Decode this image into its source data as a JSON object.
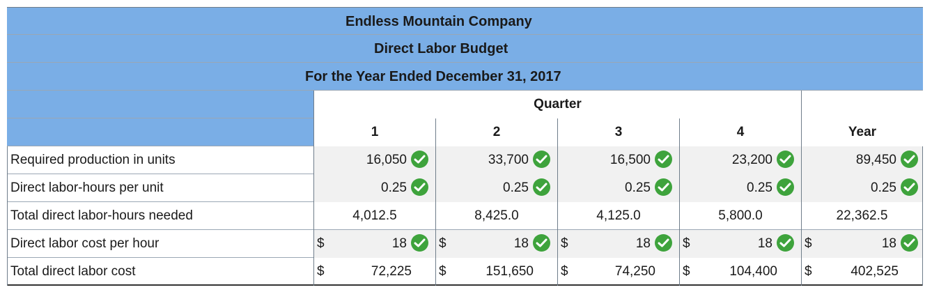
{
  "header": {
    "company": "Endless Mountain Company",
    "report": "Direct Labor Budget",
    "period": "For the Year Ended December 31, 2017"
  },
  "columns": {
    "quarter_label": "Quarter",
    "q1": "1",
    "q2": "2",
    "q3": "3",
    "q4": "4",
    "year": "Year"
  },
  "rows": [
    {
      "label": "Required production in units",
      "q1": "16,050",
      "q2": "33,700",
      "q3": "16,500",
      "q4": "23,200",
      "year": "89,450"
    },
    {
      "label": "Direct labor-hours per unit",
      "q1": "0.25",
      "q2": "0.25",
      "q3": "0.25",
      "q4": "0.25",
      "year": "0.25"
    },
    {
      "label": "Total direct labor-hours needed",
      "q1": "4,012.5",
      "q2": "8,425.0",
      "q3": "4,125.0",
      "q4": "5,800.0",
      "year": "22,362.5"
    },
    {
      "label": "Direct labor cost per hour",
      "currency": "$",
      "q1": "18",
      "q2": "18",
      "q3": "18",
      "q4": "18",
      "year": "18"
    },
    {
      "label": "Total direct labor cost",
      "currency": "$",
      "q1": "72,225",
      "q2": "151,650",
      "q3": "74,250",
      "q4": "104,400",
      "year": "402,525"
    }
  ],
  "colors": {
    "band": "#7aaee6",
    "check": "#3ea33c",
    "input_cell": "#f1f1f1"
  },
  "icons": {
    "check": "check-circle-icon"
  }
}
